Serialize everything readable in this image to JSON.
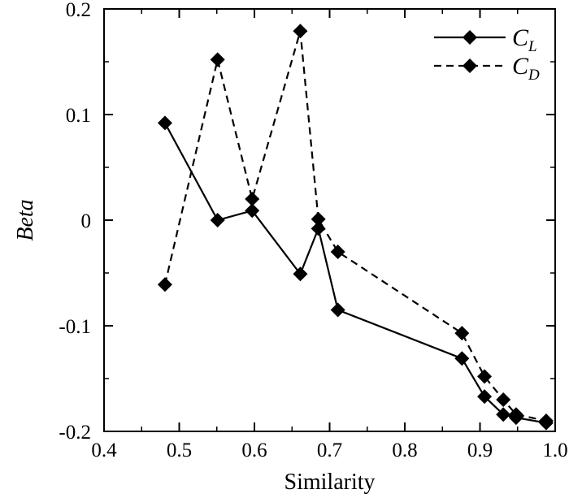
{
  "chart_data": {
    "type": "line",
    "xlabel": "Similarity",
    "ylabel": "Beta",
    "xlim": [
      0.4,
      1.0
    ],
    "ylim": [
      -0.2,
      0.2
    ],
    "xticks": [
      "0.4",
      "0.5",
      "0.6",
      "0.7",
      "0.8",
      "0.9",
      "1.0"
    ],
    "yticks": [
      "-0.2",
      "-0.1",
      "0",
      "0.1",
      "0.2"
    ],
    "legend_position": "top-right",
    "series": [
      {
        "name": "C_L",
        "label_main": "C",
        "label_sub": "L",
        "line_style": "solid",
        "marker": "diamond",
        "x": [
          0.481,
          0.551,
          0.597,
          0.661,
          0.685,
          0.711,
          0.876,
          0.906,
          0.931,
          0.948,
          0.988
        ],
        "y": [
          0.092,
          0.0,
          0.009,
          -0.051,
          -0.008,
          -0.085,
          -0.131,
          -0.167,
          -0.184,
          -0.187,
          -0.192
        ]
      },
      {
        "name": "C_D",
        "label_main": "C",
        "label_sub": "D",
        "line_style": "dashed",
        "marker": "diamond",
        "x": [
          0.481,
          0.551,
          0.597,
          0.661,
          0.685,
          0.711,
          0.876,
          0.906,
          0.931,
          0.948,
          0.988
        ],
        "y": [
          -0.061,
          0.152,
          0.02,
          0.179,
          0.001,
          -0.03,
          -0.107,
          -0.148,
          -0.17,
          -0.184,
          -0.19
        ]
      }
    ]
  }
}
